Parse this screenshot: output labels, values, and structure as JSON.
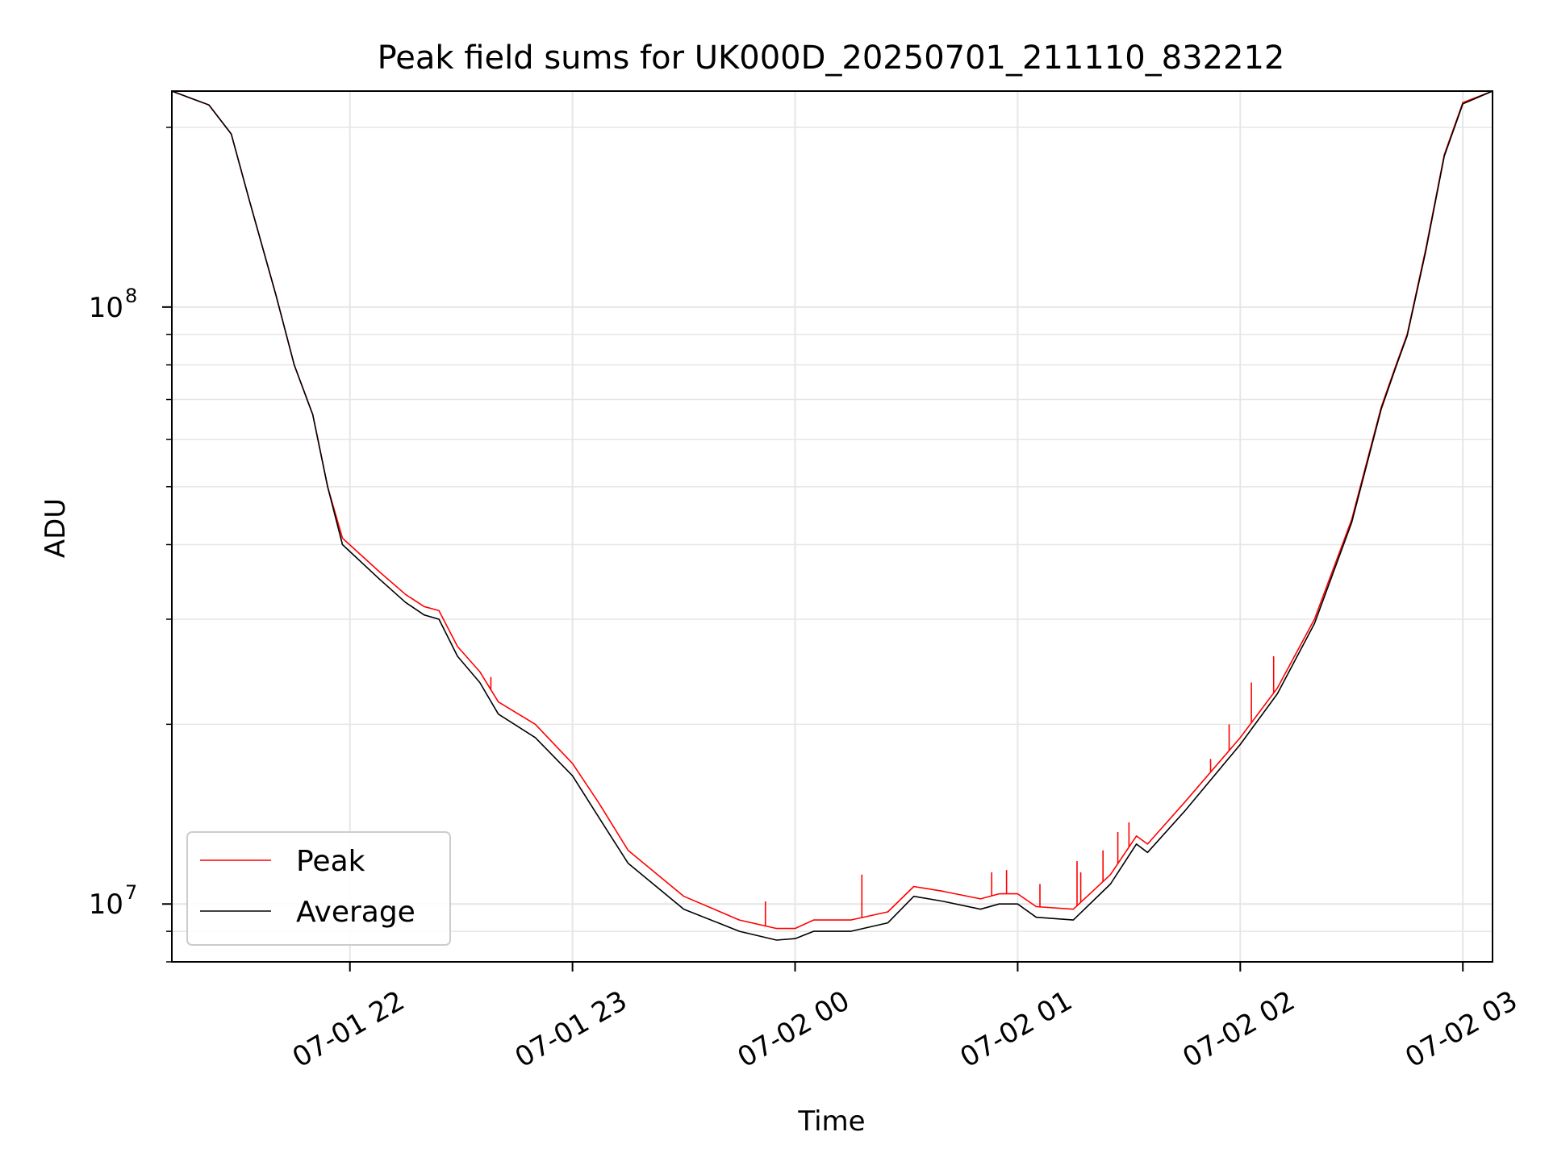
{
  "chart_data": {
    "type": "line",
    "title": "Peak field sums for UK000D_20250701_211110_832212",
    "xlabel": "Time",
    "ylabel": "ADU",
    "yscale": "log",
    "ylim": [
      8000000,
      230000000
    ],
    "xlim": [
      "07-01 21:12",
      "07-02 03:08"
    ],
    "grid": true,
    "legend": "lower-left",
    "x_ticks": [
      {
        "label": "07-01 22",
        "time": "07-01 22:00"
      },
      {
        "label": "07-01 23",
        "time": "07-01 23:00"
      },
      {
        "label": "07-02 00",
        "time": "07-02 00:00"
      },
      {
        "label": "07-02 01",
        "time": "07-02 01:00"
      },
      {
        "label": "07-02 02",
        "time": "07-02 02:00"
      },
      {
        "label": "07-02 03",
        "time": "07-02 03:00"
      }
    ],
    "y_ticks": [
      {
        "base": "10",
        "exp": "7",
        "value": 10000000
      },
      {
        "base": "10",
        "exp": "8",
        "value": 100000000
      }
    ],
    "series": [
      {
        "name": "Peak",
        "color": "#ff0000",
        "points": [
          [
            "07-01 21:12",
            230000000
          ],
          [
            "07-01 21:22",
            218000000
          ],
          [
            "07-01 21:28",
            195000000
          ],
          [
            "07-01 21:33",
            150000000
          ],
          [
            "07-01 21:40",
            105000000
          ],
          [
            "07-01 21:45",
            80000000
          ],
          [
            "07-01 21:50",
            66000000
          ],
          [
            "07-01 21:54",
            50000000
          ],
          [
            "07-01 21:58",
            41000000
          ],
          [
            "07-01 22:08",
            36000000
          ],
          [
            "07-01 22:15",
            33000000
          ],
          [
            "07-01 22:20",
            31500000
          ],
          [
            "07-01 22:24",
            31000000
          ],
          [
            "07-01 22:29",
            27000000
          ],
          [
            "07-01 22:35",
            24500000
          ],
          [
            "07-01 22:40",
            21800000
          ],
          [
            "07-01 22:50",
            20000000
          ],
          [
            "07-01 23:00",
            17200000
          ],
          [
            "07-01 23:07",
            14800000
          ],
          [
            "07-01 23:15",
            12300000
          ],
          [
            "07-01 23:30",
            10300000
          ],
          [
            "07-01 23:45",
            9400000
          ],
          [
            "07-01 23:55",
            9100000
          ],
          [
            "07-02 00:00",
            9100000
          ],
          [
            "07-02 00:05",
            9400000
          ],
          [
            "07-02 00:15",
            9400000
          ],
          [
            "07-02 00:25",
            9700000
          ],
          [
            "07-02 00:32",
            10700000
          ],
          [
            "07-02 00:40",
            10500000
          ],
          [
            "07-02 00:50",
            10200000
          ],
          [
            "07-02 00:55",
            10400000
          ],
          [
            "07-02 01:00",
            10400000
          ],
          [
            "07-02 01:05",
            9900000
          ],
          [
            "07-02 01:15",
            9800000
          ],
          [
            "07-02 01:25",
            11200000
          ],
          [
            "07-02 01:32",
            13000000
          ],
          [
            "07-02 01:35",
            12600000
          ],
          [
            "07-02 01:45",
            14800000
          ],
          [
            "07-02 02:00",
            19000000
          ],
          [
            "07-02 02:10",
            23000000
          ],
          [
            "07-02 02:20",
            30000000
          ],
          [
            "07-02 02:30",
            44000000
          ],
          [
            "07-02 02:38",
            68000000
          ],
          [
            "07-02 02:42",
            80000000
          ],
          [
            "07-02 02:45",
            90000000
          ],
          [
            "07-02 02:50",
            125000000
          ],
          [
            "07-02 02:55",
            180000000
          ],
          [
            "07-02 03:00",
            220000000
          ],
          [
            "07-02 03:08",
            230000000
          ]
        ]
      },
      {
        "name": "Average",
        "color": "#000000",
        "points": [
          [
            "07-01 21:12",
            230000000
          ],
          [
            "07-01 21:22",
            218000000
          ],
          [
            "07-01 21:28",
            195000000
          ],
          [
            "07-01 21:33",
            150000000
          ],
          [
            "07-01 21:40",
            105000000
          ],
          [
            "07-01 21:45",
            80000000
          ],
          [
            "07-01 21:50",
            66000000
          ],
          [
            "07-01 21:54",
            50000000
          ],
          [
            "07-01 21:58",
            40000000
          ],
          [
            "07-01 22:08",
            35000000
          ],
          [
            "07-01 22:15",
            32000000
          ],
          [
            "07-01 22:20",
            30500000
          ],
          [
            "07-01 22:24",
            30000000
          ],
          [
            "07-01 22:29",
            26000000
          ],
          [
            "07-01 22:35",
            23500000
          ],
          [
            "07-01 22:40",
            20800000
          ],
          [
            "07-01 22:50",
            19000000
          ],
          [
            "07-01 23:00",
            16400000
          ],
          [
            "07-01 23:07",
            14000000
          ],
          [
            "07-01 23:15",
            11700000
          ],
          [
            "07-01 23:30",
            9800000
          ],
          [
            "07-01 23:45",
            9000000
          ],
          [
            "07-01 23:55",
            8700000
          ],
          [
            "07-02 00:00",
            8750000
          ],
          [
            "07-02 00:05",
            9000000
          ],
          [
            "07-02 00:15",
            9000000
          ],
          [
            "07-02 00:25",
            9300000
          ],
          [
            "07-02 00:32",
            10300000
          ],
          [
            "07-02 00:40",
            10100000
          ],
          [
            "07-02 00:50",
            9800000
          ],
          [
            "07-02 00:55",
            10000000
          ],
          [
            "07-02 01:00",
            10000000
          ],
          [
            "07-02 01:05",
            9500000
          ],
          [
            "07-02 01:15",
            9400000
          ],
          [
            "07-02 01:25",
            10800000
          ],
          [
            "07-02 01:32",
            12600000
          ],
          [
            "07-02 01:35",
            12200000
          ],
          [
            "07-02 01:45",
            14300000
          ],
          [
            "07-02 02:00",
            18500000
          ],
          [
            "07-02 02:10",
            22500000
          ],
          [
            "07-02 02:20",
            29500000
          ],
          [
            "07-02 02:30",
            43500000
          ],
          [
            "07-02 02:38",
            67500000
          ],
          [
            "07-02 02:42",
            79500000
          ],
          [
            "07-02 02:45",
            89500000
          ],
          [
            "07-02 02:50",
            124000000
          ],
          [
            "07-02 02:55",
            179000000
          ],
          [
            "07-02 03:00",
            219000000
          ],
          [
            "07-02 03:08",
            230000000
          ]
        ]
      }
    ],
    "annotations": {
      "peak_spikes": [
        [
          "07-01 22:38",
          24000000
        ],
        [
          "07-01 23:52",
          10100000
        ],
        [
          "07-02 00:18",
          11200000
        ],
        [
          "07-02 00:53",
          11300000
        ],
        [
          "07-02 00:57",
          11400000
        ],
        [
          "07-02 01:06",
          10800000
        ],
        [
          "07-02 01:16",
          11800000
        ],
        [
          "07-02 01:17",
          11300000
        ],
        [
          "07-02 01:23",
          12300000
        ],
        [
          "07-02 01:27",
          13200000
        ],
        [
          "07-02 01:30",
          13700000
        ],
        [
          "07-02 01:52",
          17500000
        ],
        [
          "07-02 01:57",
          20000000
        ],
        [
          "07-02 02:03",
          23500000
        ],
        [
          "07-02 02:09",
          26000000
        ]
      ]
    }
  }
}
